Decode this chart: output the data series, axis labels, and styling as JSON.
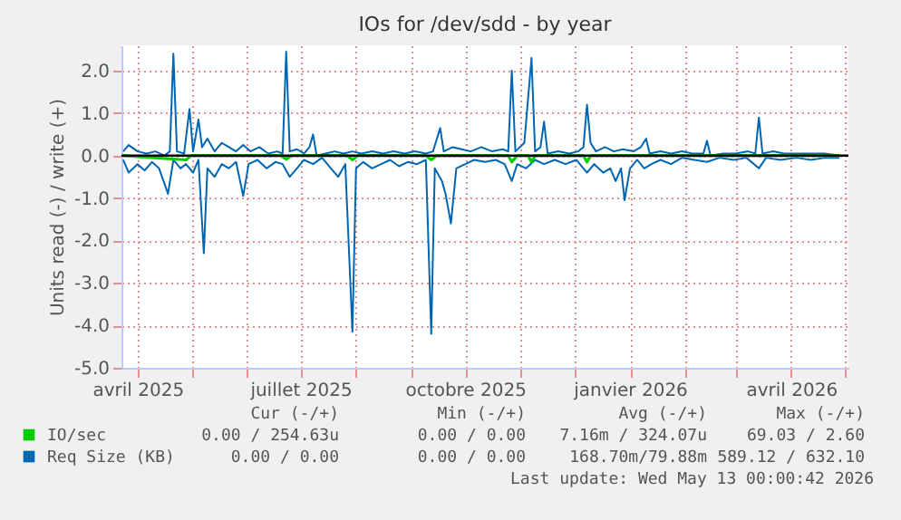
{
  "chart_data": {
    "type": "line",
    "title": "IOs for /dev/sdd - by year",
    "ylabel": "Units read (-) / write (+)",
    "xlim": [
      "2025-03-23",
      "2026-05-03"
    ],
    "xticks": [
      {
        "value": "2025-04-01",
        "label": "avril 2025"
      },
      {
        "value": "2025-05-01",
        "label": null
      },
      {
        "value": "2025-06-01",
        "label": null
      },
      {
        "value": "2025-07-01",
        "label": "juillet 2025"
      },
      {
        "value": "2025-08-01",
        "label": null
      },
      {
        "value": "2025-09-01",
        "label": null
      },
      {
        "value": "2025-10-01",
        "label": "octobre 2025"
      },
      {
        "value": "2025-11-01",
        "label": null
      },
      {
        "value": "2025-12-01",
        "label": null
      },
      {
        "value": "2026-01-01",
        "label": "janvier 2026"
      },
      {
        "value": "2026-02-01",
        "label": null
      },
      {
        "value": "2026-03-01",
        "label": null
      },
      {
        "value": "2026-04-01",
        "label": "avril 2026"
      },
      {
        "value": "2026-05-01",
        "label": null
      }
    ],
    "ylim": [
      -5.0,
      2.6
    ],
    "yticks": [
      {
        "value": -5,
        "label": "-5.0"
      },
      {
        "value": -4,
        "label": "-4.0"
      },
      {
        "value": -3,
        "label": "-3.0"
      },
      {
        "value": -2,
        "label": "-2.0"
      },
      {
        "value": -1,
        "label": "-1.0"
      },
      {
        "value": 0,
        "label": "0.0"
      },
      {
        "value": 1,
        "label": "1.0"
      },
      {
        "value": 2,
        "label": "2.0"
      }
    ],
    "grid": true,
    "legend": "bottom",
    "marker": "none",
    "line_style": "solid",
    "ref_lines": [
      {
        "axis": "y",
        "value": 0,
        "label": null,
        "color": "#000000"
      }
    ],
    "series": [
      {
        "name": "IO/sec",
        "color": "#00cc00",
        "x": [
          "2025-03-24",
          "2025-04-28",
          "2025-05-01",
          "2025-06-20",
          "2025-06-23",
          "2025-06-26",
          "2025-07-27",
          "2025-07-30",
          "2025-08-02",
          "2025-09-09",
          "2025-09-12",
          "2025-09-15",
          "2025-10-25",
          "2025-10-27",
          "2025-10-30",
          "2025-11-05",
          "2025-11-07",
          "2025-11-09",
          "2025-12-06",
          "2025-12-08",
          "2025-12-10",
          "2026-04-28"
        ],
        "values": [
          0,
          -0.1,
          0,
          0,
          -0.08,
          0,
          0,
          -0.1,
          0,
          0,
          -0.1,
          0,
          0,
          -0.15,
          0,
          0,
          -0.15,
          0,
          0,
          -0.15,
          0,
          0
        ]
      },
      {
        "name": "Req Size (KB)",
        "color": "#0066b3",
        "x": [
          "2025-03-24",
          "2025-03-27",
          "2025-04-01",
          "2025-04-06",
          "2025-04-11",
          "2025-04-16",
          "2025-04-19",
          "2025-04-21",
          "2025-04-23",
          "2025-04-27",
          "2025-04-30",
          "2025-05-02",
          "2025-05-05",
          "2025-05-07",
          "2025-05-10",
          "2025-05-14",
          "2025-05-18",
          "2025-05-22",
          "2025-05-26",
          "2025-05-30",
          "2025-06-03",
          "2025-06-08",
          "2025-06-13",
          "2025-06-18",
          "2025-06-21",
          "2025-06-23",
          "2025-06-25",
          "2025-06-29",
          "2025-07-03",
          "2025-07-06",
          "2025-07-08",
          "2025-07-10",
          "2025-07-15",
          "2025-07-20",
          "2025-07-25",
          "2025-07-30",
          "2025-08-04",
          "2025-08-10",
          "2025-08-16",
          "2025-08-22",
          "2025-08-28",
          "2025-09-03",
          "2025-09-09",
          "2025-09-13",
          "2025-09-17",
          "2025-09-19",
          "2025-09-24",
          "2025-09-29",
          "2025-10-04",
          "2025-10-10",
          "2025-10-16",
          "2025-10-22",
          "2025-10-25",
          "2025-10-27",
          "2025-10-29",
          "2025-11-03",
          "2025-11-07",
          "2025-11-09",
          "2025-11-12",
          "2025-11-14",
          "2025-11-16",
          "2025-11-22",
          "2025-11-28",
          "2025-12-03",
          "2025-12-06",
          "2025-12-08",
          "2025-12-10",
          "2025-12-13",
          "2025-12-18",
          "2025-12-23",
          "2025-12-28",
          "2026-01-03",
          "2026-01-07",
          "2026-01-10",
          "2026-01-12",
          "2026-01-18",
          "2026-01-24",
          "2026-01-30",
          "2026-02-05",
          "2026-02-11",
          "2026-02-13",
          "2026-02-15",
          "2026-02-22",
          "2026-03-01",
          "2026-03-08",
          "2026-03-12",
          "2026-03-14",
          "2026-03-16",
          "2026-03-22",
          "2026-03-28",
          "2026-04-05",
          "2026-04-12",
          "2026-04-20",
          "2026-04-28"
        ],
        "values": [
          0.1,
          0.25,
          0.1,
          0.05,
          0.1,
          0.0,
          0.1,
          2.4,
          0.1,
          0.05,
          1.1,
          0.1,
          0.85,
          0.2,
          0.4,
          0.1,
          0.3,
          0.2,
          0.1,
          0.25,
          0.1,
          0.2,
          0.05,
          0.1,
          0.05,
          2.45,
          0.1,
          0.15,
          0.05,
          0.2,
          0.5,
          0.0,
          0.05,
          0.1,
          0.05,
          0.1,
          0.05,
          0.1,
          0.05,
          0.1,
          0.05,
          0.1,
          0.05,
          0.1,
          0.65,
          0.1,
          0.2,
          0.15,
          0.1,
          0.2,
          0.1,
          0.15,
          0.1,
          2.0,
          0.1,
          0.3,
          2.3,
          0.1,
          0.2,
          0.8,
          0.05,
          0.1,
          0.05,
          0.1,
          0.2,
          1.2,
          0.3,
          0.1,
          0.2,
          0.1,
          0.15,
          0.1,
          0.2,
          0.4,
          0.05,
          0.1,
          0.05,
          0.1,
          0.05,
          0.05,
          0.35,
          0.0,
          0.05,
          0.05,
          0.1,
          0.05,
          0.9,
          0.05,
          0.1,
          0.05,
          0.05,
          0.05,
          0.05,
          0.0
        ]
      },
      {
        "color": "#0066b3",
        "x": [
          "2025-03-24",
          "2025-03-27",
          "2025-04-01",
          "2025-04-05",
          "2025-04-09",
          "2025-04-13",
          "2025-04-18",
          "2025-04-21",
          "2025-04-25",
          "2025-04-28",
          "2025-05-02",
          "2025-05-05",
          "2025-05-08",
          "2025-05-10",
          "2025-05-14",
          "2025-05-18",
          "2025-05-22",
          "2025-05-26",
          "2025-05-30",
          "2025-06-02",
          "2025-06-07",
          "2025-06-12",
          "2025-06-17",
          "2025-06-21",
          "2025-06-25",
          "2025-06-29",
          "2025-07-03",
          "2025-07-08",
          "2025-07-13",
          "2025-07-18",
          "2025-07-22",
          "2025-07-26",
          "2025-07-30",
          "2025-08-01",
          "2025-08-05",
          "2025-08-10",
          "2025-08-15",
          "2025-08-20",
          "2025-08-25",
          "2025-08-30",
          "2025-09-04",
          "2025-09-09",
          "2025-09-12",
          "2025-09-14",
          "2025-09-18",
          "2025-09-20",
          "2025-09-23",
          "2025-09-26",
          "2025-10-01",
          "2025-10-06",
          "2025-10-12",
          "2025-10-18",
          "2025-10-23",
          "2025-10-27",
          "2025-10-30",
          "2025-11-04",
          "2025-11-09",
          "2025-11-14",
          "2025-11-20",
          "2025-11-26",
          "2025-12-02",
          "2025-12-08",
          "2025-12-12",
          "2025-12-17",
          "2025-12-21",
          "2025-12-24",
          "2025-12-27",
          "2025-12-29",
          "2026-01-01",
          "2026-01-05",
          "2026-01-09",
          "2026-01-13",
          "2026-01-18",
          "2026-01-24",
          "2026-01-30",
          "2026-02-06",
          "2026-02-13",
          "2026-02-20",
          "2026-02-28",
          "2026-03-07",
          "2026-03-14",
          "2026-03-18",
          "2026-03-26",
          "2026-04-04",
          "2026-04-12",
          "2026-04-20",
          "2026-04-28"
        ],
        "values": [
          -0.1,
          -0.4,
          -0.2,
          -0.35,
          -0.15,
          -0.3,
          -0.9,
          -0.1,
          -0.3,
          -0.2,
          -0.4,
          -0.1,
          -2.3,
          -0.3,
          -0.5,
          -0.2,
          -0.3,
          -0.15,
          -0.95,
          -0.2,
          -0.1,
          -0.3,
          -0.15,
          -0.2,
          -0.5,
          -0.3,
          -0.1,
          -0.2,
          -0.05,
          -0.3,
          -0.5,
          -0.2,
          -4.15,
          -0.3,
          -0.15,
          -0.3,
          -0.2,
          -0.1,
          -0.25,
          -0.15,
          -0.2,
          -0.1,
          -4.2,
          -0.3,
          -0.6,
          -0.9,
          -1.6,
          -0.3,
          -0.2,
          -0.1,
          -0.15,
          -0.1,
          -0.2,
          -0.6,
          -0.2,
          -0.3,
          -0.1,
          -0.2,
          -0.1,
          -0.2,
          -0.1,
          -0.4,
          -0.2,
          -0.4,
          -0.3,
          -0.6,
          -0.3,
          -1.05,
          -0.3,
          -0.1,
          -0.3,
          -0.2,
          -0.1,
          -0.2,
          -0.05,
          -0.1,
          -0.15,
          -0.05,
          -0.1,
          -0.05,
          -0.3,
          -0.05,
          -0.1,
          -0.05,
          -0.1,
          -0.05,
          -0.05
        ]
      }
    ],
    "annotations": [
      "Cur (-/+)",
      "Min (-/+)",
      "Avg (-/+)",
      "Max (-/+)",
      "0.00 / 254.63u",
      "0.00 / 0.00",
      "7.16m / 324.07u",
      "69.03 / 2.60",
      "0.00 / 0.00",
      "0.00 / 0.00",
      "168.70m/79.88m",
      "589.12 / 632.10",
      "Last update: Wed May 13 00:00:42 2026"
    ]
  }
}
